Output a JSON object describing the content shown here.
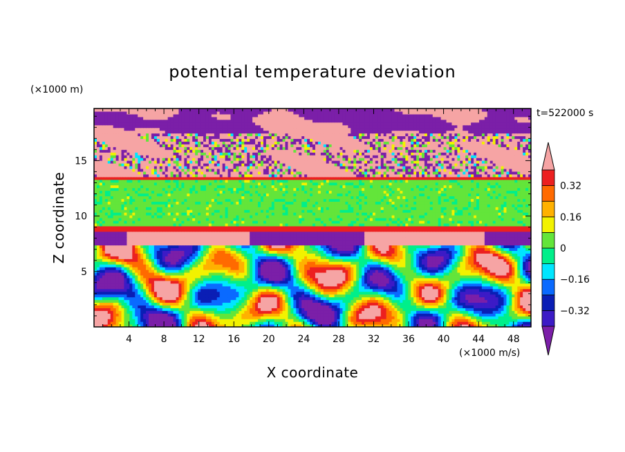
{
  "chart_data": {
    "type": "heatmap",
    "title": "potential temperature deviation",
    "xlabel": "X coordinate",
    "ylabel": "Z coordinate",
    "x_unit": "(×1000 m/s)",
    "y_unit": "(×1000 m)",
    "time_label": "t=522000 s",
    "xlim": [
      0,
      50
    ],
    "ylim": [
      0,
      19.7
    ],
    "x_ticks": [
      4,
      8,
      12,
      16,
      20,
      24,
      28,
      32,
      36,
      40,
      44,
      48
    ],
    "y_ticks": [
      5,
      10,
      15
    ],
    "colorbar": {
      "ticks": [
        0.32,
        0.16,
        0,
        -0.16,
        -0.32
      ],
      "levels": [
        -0.4,
        -0.32,
        -0.24,
        -0.16,
        -0.08,
        0,
        0.08,
        0.16,
        0.24,
        0.32,
        0.4
      ],
      "colors": [
        "#7b1fa8",
        "#3c1bc6",
        "#0a1eb5",
        "#0a6aff",
        "#00e6ff",
        "#00ef8a",
        "#63e53a",
        "#f2f200",
        "#ffb100",
        "#ff6a00",
        "#ec2020",
        "#f6a4a4"
      ],
      "extend": "both"
    },
    "layers": [
      {
        "z_range": [
          17.5,
          19.7
        ],
        "pattern": "alternating purple / pink patches, mostly purple at top"
      },
      {
        "z_range": [
          13.6,
          17.5
        ],
        "pattern": "noisy mixture: pink blobs with purple, green, cyan speckles"
      },
      {
        "z_range": [
          13.2,
          13.6
        ],
        "value": 0.32
      },
      {
        "z_range": [
          9.0,
          13.2
        ],
        "value": 0.04
      },
      {
        "z_range": [
          8.6,
          9.0
        ],
        "value": 0.32
      },
      {
        "z_range": [
          7.4,
          8.6
        ],
        "pattern": "pink and purple band"
      },
      {
        "z_range": [
          0,
          7.4
        ],
        "pattern": "turbulent eddies spanning -0.4 to 0.4"
      }
    ]
  }
}
